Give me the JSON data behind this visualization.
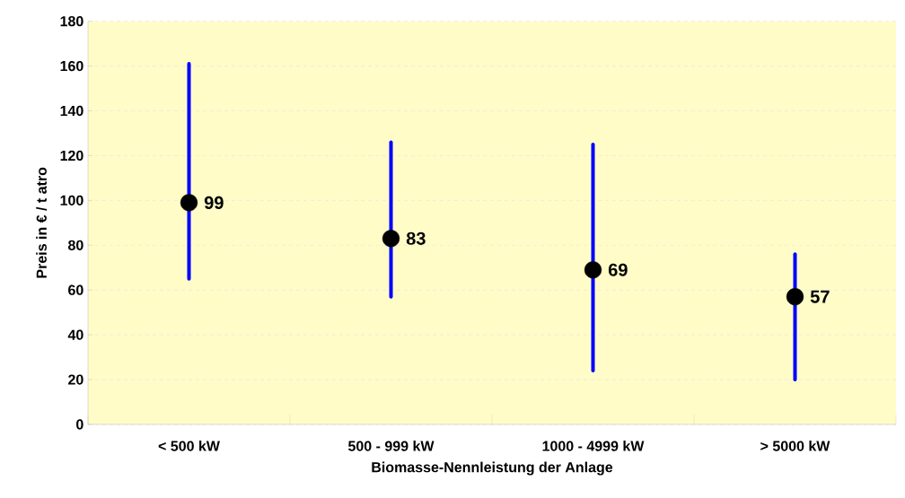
{
  "chart_data": {
    "type": "scatter",
    "xlabel": "Biomasse-Nennleistung der Anlage",
    "ylabel": "Preis in € / t atro",
    "categories": [
      "< 500 kW",
      "500 - 999 kW",
      "1000 - 4999 kW",
      "> 5000 kW"
    ],
    "values": [
      99,
      83,
      69,
      57
    ],
    "errors": [
      [
        65,
        161
      ],
      [
        57,
        126
      ],
      [
        24,
        125
      ],
      [
        20,
        76
      ]
    ],
    "color": "#000000",
    "ylim": [
      0,
      180
    ],
    "yticks": [
      0,
      20,
      40,
      60,
      80,
      100,
      120,
      140,
      160,
      180
    ],
    "grid": "y",
    "marker": "circle",
    "data_labels": true
  }
}
